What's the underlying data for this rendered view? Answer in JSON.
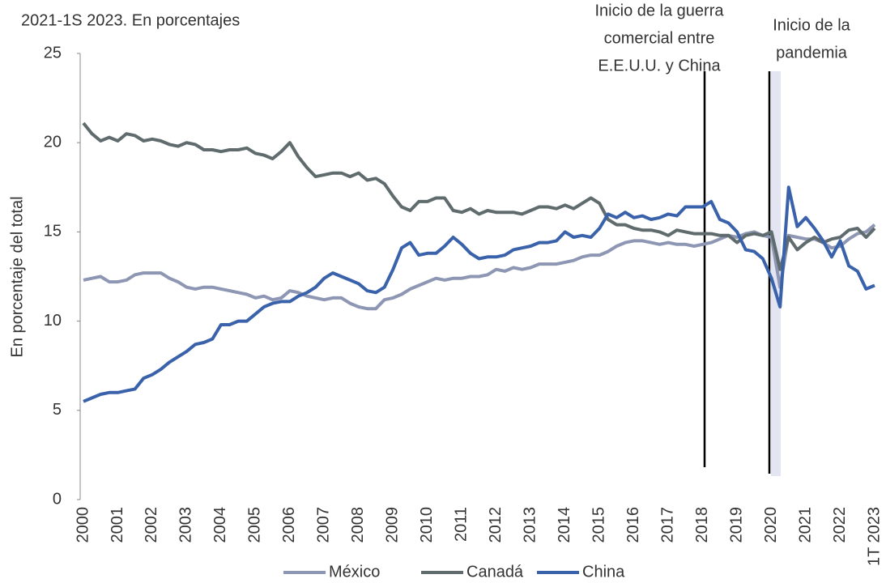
{
  "chart_data": {
    "type": "line",
    "title": "2021-1S 2023. En porcentajes",
    "y_label": "En porcentaje del total",
    "categories": [
      "2000",
      null,
      null,
      null,
      "2001",
      null,
      null,
      null,
      "2002",
      null,
      null,
      null,
      "2003",
      null,
      null,
      null,
      "2004",
      null,
      null,
      null,
      "2005",
      null,
      null,
      null,
      "2006",
      null,
      null,
      null,
      "2007",
      null,
      null,
      null,
      "2008",
      null,
      null,
      null,
      "2009",
      null,
      null,
      null,
      "2010",
      null,
      null,
      null,
      "2011",
      null,
      null,
      null,
      "2012",
      null,
      null,
      null,
      "2013",
      null,
      null,
      null,
      "2014",
      null,
      null,
      null,
      "2015",
      null,
      null,
      null,
      "2016",
      null,
      null,
      null,
      "2017",
      null,
      null,
      null,
      "2018",
      null,
      null,
      null,
      "2019",
      null,
      null,
      null,
      "2020",
      null,
      null,
      null,
      "2021",
      null,
      null,
      null,
      "2022",
      null,
      null,
      null,
      "1T 2023"
    ],
    "series": [
      {
        "name": "México",
        "color": "#8d96b3",
        "values": [
          12.3,
          12.4,
          12.5,
          12.2,
          12.2,
          12.3,
          12.6,
          12.7,
          12.7,
          12.7,
          12.4,
          12.2,
          11.9,
          11.8,
          11.9,
          11.9,
          11.8,
          11.7,
          11.6,
          11.5,
          11.3,
          11.4,
          11.2,
          11.3,
          11.7,
          11.6,
          11.4,
          11.3,
          11.2,
          11.3,
          11.3,
          11.0,
          10.8,
          10.7,
          10.7,
          11.2,
          11.3,
          11.5,
          11.8,
          12.0,
          12.2,
          12.4,
          12.3,
          12.4,
          12.4,
          12.5,
          12.5,
          12.6,
          12.9,
          12.8,
          13.0,
          12.9,
          13.0,
          13.2,
          13.2,
          13.2,
          13.3,
          13.4,
          13.6,
          13.7,
          13.7,
          13.9,
          14.2,
          14.4,
          14.5,
          14.5,
          14.4,
          14.3,
          14.4,
          14.3,
          14.3,
          14.2,
          14.3,
          14.4,
          14.6,
          14.8,
          14.7,
          14.9,
          15.0,
          14.8,
          14.7,
          11.9,
          14.8,
          14.7,
          14.6,
          14.6,
          14.4,
          14.1,
          14.2,
          14.6,
          14.9,
          15.0,
          15.4
        ]
      },
      {
        "name": "Canadá",
        "color": "#5f6b6d",
        "values": [
          21.1,
          20.5,
          20.1,
          20.3,
          20.1,
          20.5,
          20.4,
          20.1,
          20.2,
          20.1,
          19.9,
          19.8,
          20.0,
          19.9,
          19.6,
          19.6,
          19.5,
          19.6,
          19.6,
          19.7,
          19.4,
          19.3,
          19.1,
          19.5,
          20.0,
          19.2,
          18.6,
          18.1,
          18.2,
          18.3,
          18.3,
          18.1,
          18.3,
          17.9,
          18.0,
          17.7,
          17.0,
          16.4,
          16.2,
          16.7,
          16.7,
          16.9,
          16.9,
          16.2,
          16.1,
          16.3,
          16.0,
          16.2,
          16.1,
          16.1,
          16.1,
          16.0,
          16.2,
          16.4,
          16.4,
          16.3,
          16.5,
          16.3,
          16.6,
          16.9,
          16.6,
          15.7,
          15.4,
          15.4,
          15.2,
          15.1,
          15.1,
          15.0,
          14.8,
          15.1,
          15.0,
          14.9,
          14.9,
          14.9,
          14.8,
          14.8,
          14.4,
          14.8,
          14.9,
          14.8,
          15.0,
          12.9,
          14.7,
          14.0,
          14.4,
          14.7,
          14.4,
          14.6,
          14.7,
          15.1,
          15.2,
          14.7,
          15.2
        ]
      },
      {
        "name": "China",
        "color": "#3a62ab",
        "values": [
          5.5,
          5.7,
          5.9,
          6.0,
          6.0,
          6.1,
          6.2,
          6.8,
          7.0,
          7.3,
          7.7,
          8.0,
          8.3,
          8.7,
          8.8,
          9.0,
          9.8,
          9.8,
          10.0,
          10.0,
          10.4,
          10.8,
          11.0,
          11.1,
          11.1,
          11.4,
          11.6,
          11.9,
          12.4,
          12.7,
          12.5,
          12.3,
          12.1,
          11.7,
          11.6,
          11.9,
          12.9,
          14.1,
          14.4,
          13.7,
          13.8,
          13.8,
          14.2,
          14.7,
          14.3,
          13.8,
          13.5,
          13.6,
          13.6,
          13.7,
          14.0,
          14.1,
          14.2,
          14.4,
          14.4,
          14.5,
          15.0,
          14.7,
          14.8,
          14.7,
          15.2,
          16.0,
          15.8,
          16.1,
          15.8,
          15.9,
          15.7,
          15.8,
          16.0,
          15.9,
          16.4,
          16.4,
          16.4,
          16.7,
          15.7,
          15.5,
          15.0,
          14.0,
          13.9,
          13.5,
          12.4,
          10.8,
          17.5,
          15.3,
          15.8,
          15.2,
          14.5,
          13.6,
          14.5,
          13.1,
          12.8,
          11.8,
          12.0
        ]
      }
    ],
    "ylim": [
      0,
      25
    ],
    "yticks": [
      0,
      5,
      10,
      15,
      20,
      25
    ],
    "grid": false,
    "annotations": [
      {
        "lines": [
          "Inicio de la guerra",
          "comercial entre",
          "E.E.U.U. y China"
        ]
      },
      {
        "lines": [
          "Inicio de la",
          "pandemia"
        ]
      }
    ]
  }
}
